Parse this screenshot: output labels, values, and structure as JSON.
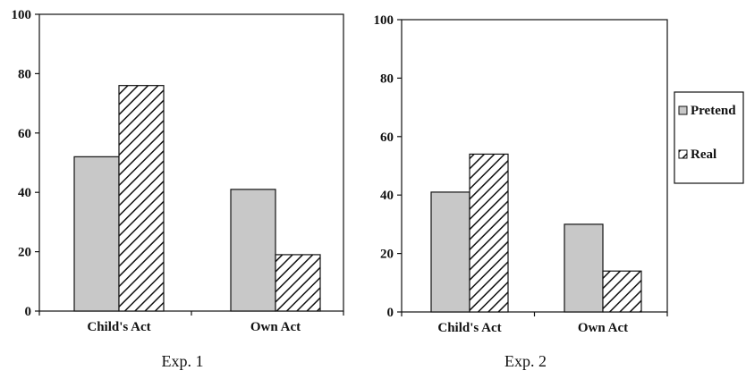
{
  "chart_data": [
    {
      "type": "bar",
      "caption": "Exp. 1",
      "categories": [
        "Child's Act",
        "Own Act"
      ],
      "series": [
        {
          "name": "Pretend",
          "values": [
            52,
            41
          ],
          "fill": "#c8c8c8",
          "pattern": "solid"
        },
        {
          "name": "Real",
          "values": [
            76,
            19
          ],
          "fill": "#ffffff",
          "pattern": "diagonal-hatch"
        }
      ],
      "ylim": [
        0,
        100
      ],
      "yticks": [
        "0",
        "20",
        "40",
        "60",
        "80",
        "100"
      ],
      "grid": false,
      "legend": false
    },
    {
      "type": "bar",
      "caption": "Exp. 2",
      "categories": [
        "Child's Act",
        "Own Act"
      ],
      "series": [
        {
          "name": "Pretend",
          "values": [
            41,
            30
          ],
          "fill": "#c8c8c8",
          "pattern": "solid"
        },
        {
          "name": "Real",
          "values": [
            54,
            14
          ],
          "fill": "#ffffff",
          "pattern": "diagonal-hatch"
        }
      ],
      "ylim": [
        0,
        100
      ],
      "yticks": [
        "0",
        "20",
        "40",
        "60",
        "80",
        "100"
      ],
      "grid": false,
      "legend": "right"
    }
  ],
  "legend": {
    "items": [
      {
        "label": "Pretend",
        "fill": "#c8c8c8",
        "pattern": "solid"
      },
      {
        "label": "Real",
        "fill": "#ffffff",
        "pattern": "diagonal-hatch"
      }
    ]
  }
}
